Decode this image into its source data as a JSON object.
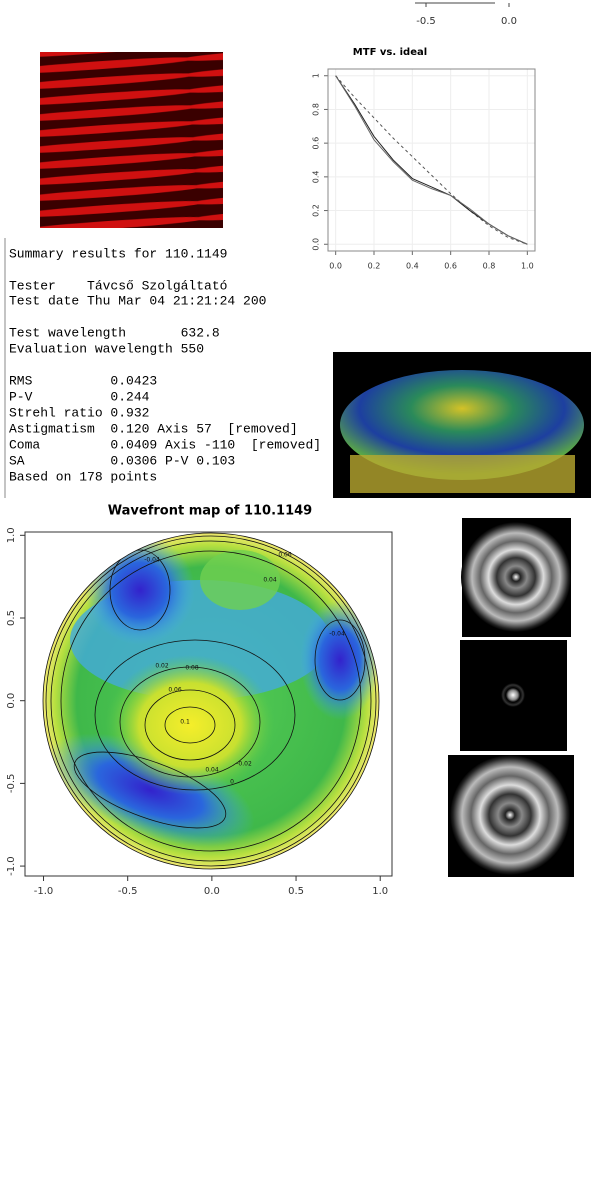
{
  "top_axis": {
    "xticks": [
      -0.5,
      {
        "value": 0,
        "label": "0.0"
      }
    ]
  },
  "mtf_chart": {
    "type": "line",
    "title": "MTF vs. ideal",
    "x": [
      0,
      0.1,
      0.2,
      0.3,
      0.4,
      0.5,
      0.6,
      0.7,
      0.8,
      0.9,
      1.0
    ],
    "series": [
      {
        "color": "#555555",
        "dashed": true,
        "values": [
          1,
          0.87,
          0.75,
          0.63,
          0.52,
          0.41,
          0.3,
          0.2,
          0.11,
          0.04,
          0
        ]
      },
      {
        "color": "#222222",
        "dashed": false,
        "values": [
          1,
          0.83,
          0.64,
          0.5,
          0.39,
          0.34,
          0.29,
          0.2,
          0.12,
          0.05,
          0
        ]
      },
      {
        "color": "#666666",
        "dashed": false,
        "values": [
          1,
          0.82,
          0.62,
          0.49,
          0.38,
          0.33,
          0.29,
          0.21,
          0.12,
          0.05,
          0
        ]
      }
    ],
    "xlim": [
      -0.04,
      1.04
    ],
    "ylim": [
      -0.04,
      1.04
    ],
    "xticks": [
      {
        "value": 0,
        "label": "0.0"
      },
      {
        "value": 0.2,
        "label": "0.2"
      },
      {
        "value": 0.4,
        "label": "0.4"
      },
      {
        "value": 0.6,
        "label": "0.6"
      },
      {
        "value": 0.8,
        "label": "0.8"
      },
      {
        "value": 1,
        "label": "1.0"
      }
    ],
    "yticks": [
      {
        "value": 0,
        "label": "0.0"
      },
      0.2,
      0.4,
      0.6,
      0.8,
      1
    ],
    "grid": true
  },
  "summary": {
    "lines": [
      "Summary results for 110.1149",
      "Tester    Távcső Szolgáltató",
      "Test date Thu Mar 04 21:21:24 200",
      "Test wavelength       632.8",
      "Evaluation wavelength 550",
      "RMS          0.0423",
      "P-V          0.244",
      "Strehl ratio 0.932",
      "Astigmatism  0.120 Axis 57  [removed]",
      "Coma         0.0409 Axis -110  [removed]",
      "SA           0.0306 P-V 0.103",
      "Based on 178 points"
    ]
  },
  "wavefront_chart": {
    "type": "contour",
    "title": "Wavefront map of 110.1149",
    "xlim": [
      -1.11,
      1.07
    ],
    "ylim": [
      -1.06,
      1.02
    ],
    "xticks": [
      {
        "value": -1,
        "label": "-1.0"
      },
      -0.5,
      {
        "value": 0,
        "label": "0.0"
      },
      0.5,
      {
        "value": 1,
        "label": "1.0"
      }
    ],
    "yticks": [
      {
        "value": -1,
        "label": "-1.0"
      },
      -0.5,
      {
        "value": 0,
        "label": "0.0"
      },
      0.5,
      {
        "value": 1,
        "label": "1.0"
      }
    ],
    "contour_labels": [
      "0.1",
      "0.08",
      "0.06",
      "0.04",
      "0.02",
      "0",
      "-0.02",
      "-0.04",
      "-0.04",
      "0.06",
      "0.04"
    ]
  }
}
